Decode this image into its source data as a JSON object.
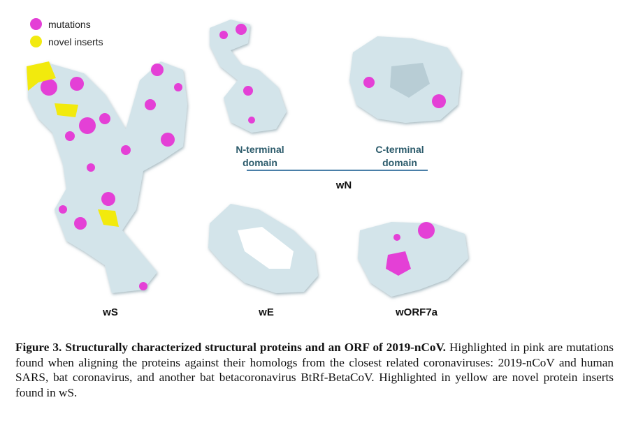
{
  "legend": {
    "items": [
      {
        "label": "mutations",
        "color": "#e43fd6"
      },
      {
        "label": "novel inserts",
        "color": "#f2ea10"
      }
    ]
  },
  "colors": {
    "protein_surface": "#d3e4ea",
    "mutation": "#e43fd6",
    "insert": "#f2ea10",
    "domain_text": "#2c5b6b",
    "divider": "#4a7fa8"
  },
  "panels": {
    "wS": "wS",
    "wE": "wE",
    "wORF7a": "wORF7a",
    "wN": "wN",
    "n_terminal": {
      "line1": "N-terminal",
      "line2": "domain"
    },
    "c_terminal": {
      "line1": "C-terminal",
      "line2": "domain"
    }
  },
  "caption": {
    "title": "Figure 3. Structurally characterized structural proteins and an ORF of 2019-nCoV.",
    "body": "Highlighted in pink are mutations found when aligning the proteins against their homologs from the closest related coronaviruses: 2019-nCoV and human SARS, bat coronavirus, and another bat betacoronavirus BtRf-BetaCoV. Highlighted in yellow are novel protein inserts found in wS."
  }
}
